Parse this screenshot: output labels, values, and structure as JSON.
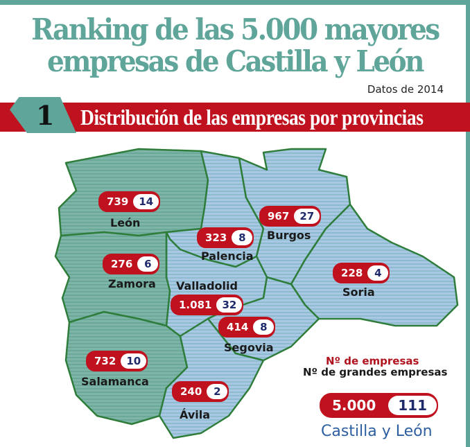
{
  "title_line1": "Ranking de las 5.000 mayores",
  "title_line2": "empresas de Castilla y León",
  "subtitle": "Datos de 2014",
  "section": {
    "number": "1",
    "title": "Distribución de las empresas por provincias"
  },
  "provinces": [
    {
      "name": "León",
      "empresas": "739",
      "grandes": "14"
    },
    {
      "name": "Palencia",
      "empresas": "323",
      "grandes": "8"
    },
    {
      "name": "Burgos",
      "empresas": "967",
      "grandes": "27"
    },
    {
      "name": "Zamora",
      "empresas": "276",
      "grandes": "6"
    },
    {
      "name": "Soria",
      "empresas": "228",
      "grandes": "4"
    },
    {
      "name": "Valladolid",
      "empresas": "1.081",
      "grandes": "32"
    },
    {
      "name": "Segovia",
      "empresas": "414",
      "grandes": "8"
    },
    {
      "name": "Salamanca",
      "empresas": "732",
      "grandes": "10"
    },
    {
      "name": "Ávila",
      "empresas": "240",
      "grandes": "2"
    }
  ],
  "legend": {
    "empresas_label": "Nº de empresas",
    "grandes_label": "Nº de grandes empresas"
  },
  "total": {
    "region": "Castilla y León",
    "empresas": "5.000",
    "grandes": "111"
  },
  "colors": {
    "teal": "#5fa59a",
    "red": "#c0121e",
    "border": "#2e7d3a",
    "navy": "#1f2a6b"
  }
}
